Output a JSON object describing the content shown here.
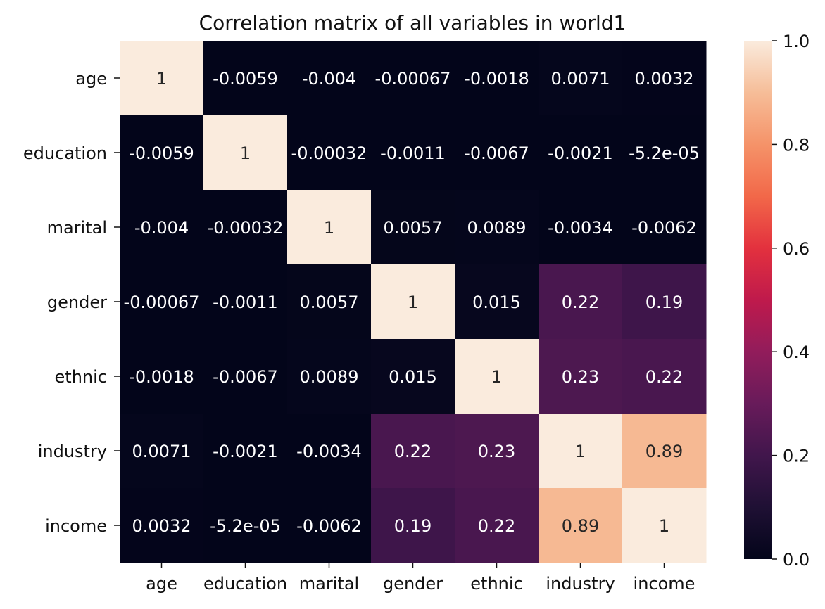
{
  "chart_data": {
    "type": "heatmap",
    "title": "Correlation matrix of all variables in world1",
    "x_labels": [
      "age",
      "education",
      "marital",
      "gender",
      "ethnic",
      "industry",
      "income"
    ],
    "y_labels": [
      "age",
      "education",
      "marital",
      "gender",
      "ethnic",
      "industry",
      "income"
    ],
    "values": [
      [
        1,
        -0.0059,
        -0.004,
        -0.00067,
        -0.0018,
        0.0071,
        0.0032
      ],
      [
        -0.0059,
        1,
        -0.00032,
        -0.0011,
        -0.0067,
        -0.0021,
        -5.2e-05
      ],
      [
        -0.004,
        -0.00032,
        1,
        0.0057,
        0.0089,
        -0.0034,
        -0.0062
      ],
      [
        -0.00067,
        -0.0011,
        0.0057,
        1,
        0.015,
        0.22,
        0.19
      ],
      [
        -0.0018,
        -0.0067,
        0.0089,
        0.015,
        1,
        0.23,
        0.22
      ],
      [
        0.0071,
        -0.0021,
        -0.0034,
        0.22,
        0.23,
        1,
        0.89
      ],
      [
        0.0032,
        -5.2e-05,
        -0.0062,
        0.19,
        0.22,
        0.89,
        1
      ]
    ],
    "annotations": [
      [
        "1",
        "-0.0059",
        "-0.004",
        "-0.00067",
        "-0.0018",
        "0.0071",
        "0.0032"
      ],
      [
        "-0.0059",
        "1",
        "-0.00032",
        "-0.0011",
        "-0.0067",
        "-0.0021",
        "-5.2e-05"
      ],
      [
        "-0.004",
        "-0.00032",
        "1",
        "0.0057",
        "0.0089",
        "-0.0034",
        "-0.0062"
      ],
      [
        "-0.00067",
        "-0.0011",
        "0.0057",
        "1",
        "0.015",
        "0.22",
        "0.19"
      ],
      [
        "-0.0018",
        "-0.0067",
        "0.0089",
        "0.015",
        "1",
        "0.23",
        "0.22"
      ],
      [
        "0.0071",
        "-0.0021",
        "-0.0034",
        "0.22",
        "0.23",
        "1",
        "0.89"
      ],
      [
        "0.0032",
        "-5.2e-05",
        "-0.0062",
        "0.19",
        "0.22",
        "0.89",
        "1"
      ]
    ],
    "colorbar": {
      "range": [
        0.0,
        1.0
      ],
      "ticks": [
        0.0,
        0.2,
        0.4,
        0.6,
        0.8,
        1.0
      ],
      "tick_labels": [
        "0.0",
        "0.2",
        "0.4",
        "0.6",
        "0.8",
        "1.0"
      ]
    },
    "colormap": "rocket",
    "legend": "colorbar-right",
    "grid": false
  }
}
